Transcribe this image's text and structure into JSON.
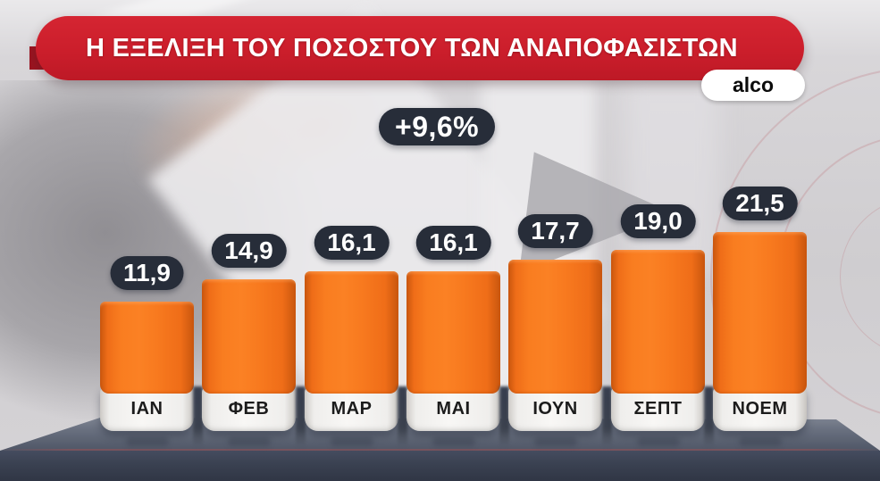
{
  "header": {
    "title": "Η ΕΞΕΛΙΞΗ ΤΟΥ ΠΟΣΟΣΤΟΥ ΤΩΝ ΑΝΑΠΟΦΑΣΙΣΤΩΝ",
    "source_badge": "alco"
  },
  "annotation": {
    "label": "+9,6%"
  },
  "chart_data": {
    "type": "bar",
    "title": "Η ΕΞΕΛΙΞΗ ΤΟΥ ΠΟΣΟΣΤΟΥ ΤΩΝ ΑΝΑΠΟΦΑΣΙΣΤΩΝ",
    "source": "alco",
    "categories": [
      "ΙΑΝ",
      "ΦΕΒ",
      "ΜΑΡ",
      "ΜΑΙ",
      "ΙΟΥΝ",
      "ΣΕΠΤ",
      "ΝΟΕΜ"
    ],
    "values": [
      11.9,
      14.9,
      16.1,
      16.1,
      17.7,
      19.0,
      21.5
    ],
    "value_labels": [
      "11,9",
      "14,9",
      "16,1",
      "16,1",
      "17,7",
      "19,0",
      "21,5"
    ],
    "annotation": "+9,6%",
    "xlabel": "",
    "ylabel": "",
    "ylim": [
      0,
      25
    ],
    "grid": false,
    "legend": "none"
  },
  "colors": {
    "banner_red": "#cb1e2b",
    "bar_orange": "#f6771f",
    "value_pill_navy": "#272d39",
    "platform_slate": "#3a4151",
    "base_white": "#f4f3f1",
    "title_text": "#ffffff",
    "month_text": "#1c1c1c",
    "source_text": "#0b0b0b"
  }
}
